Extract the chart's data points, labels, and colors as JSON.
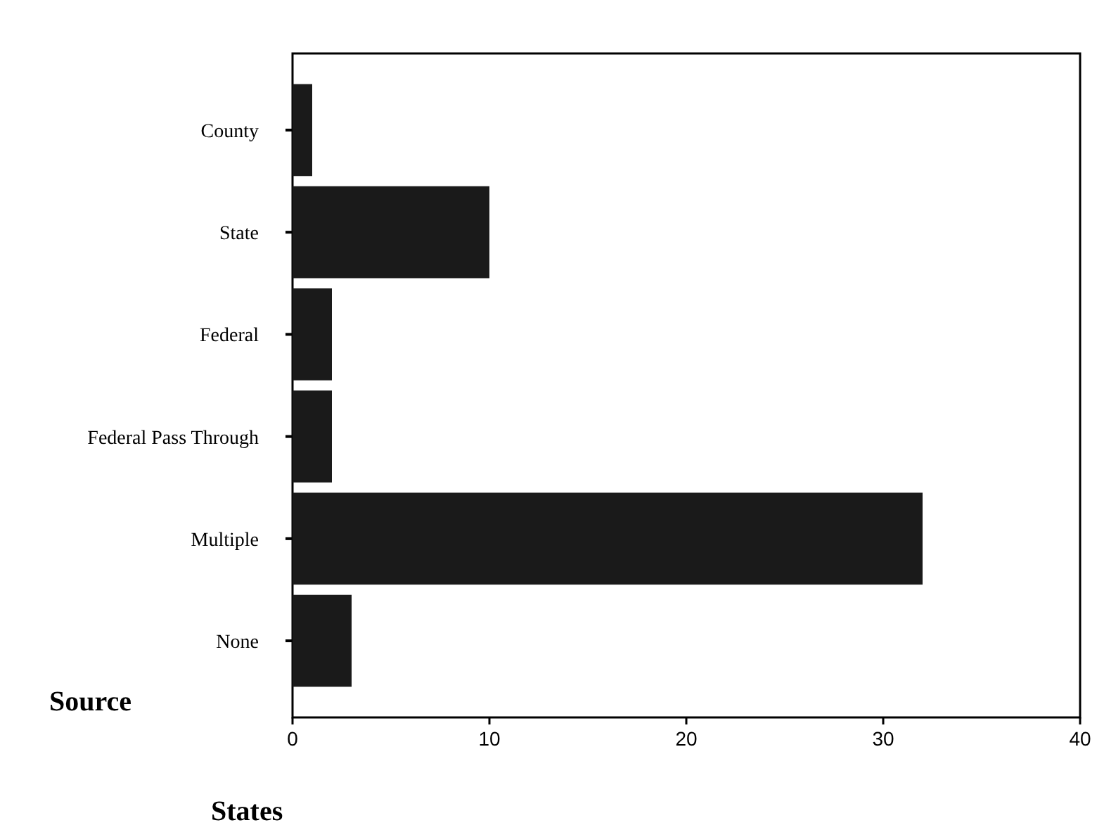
{
  "chart_data": {
    "type": "bar",
    "orientation": "horizontal",
    "categories": [
      "County",
      "State",
      "Federal",
      "Federal Pass Through",
      "Multiple",
      "None"
    ],
    "values": [
      1,
      10,
      2,
      2,
      32,
      3
    ],
    "color": "#1a1a1a",
    "xlim": [
      0,
      40
    ],
    "xticks": [
      0,
      10,
      20,
      30,
      40
    ],
    "xlabel": "States",
    "ylabel": "Source",
    "grid": false
  }
}
